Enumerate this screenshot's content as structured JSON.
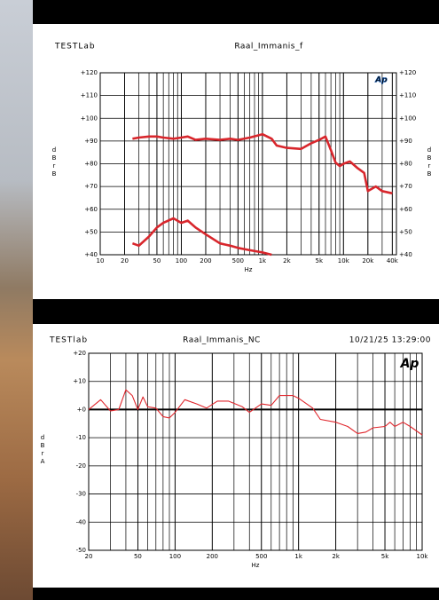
{
  "chart_data": [
    {
      "type": "line",
      "header": "TESTLab",
      "title": "Raal_Immanis_f",
      "logo": "Ap",
      "x_label": "Hz",
      "y_label": "dBr B",
      "log_x": true,
      "grid": true,
      "x": [
        25,
        30,
        40,
        50,
        60,
        80,
        100,
        120,
        150,
        200,
        300,
        400,
        500,
        700,
        1000,
        1300,
        1500,
        2000,
        3000,
        4000,
        5000,
        6000,
        7000,
        8000,
        9000,
        10000,
        12000,
        15000,
        18000,
        20000,
        25000,
        30000,
        40000
      ],
      "series": [
        {
          "color": "#d8262c",
          "values": [
            91,
            91.5,
            92,
            92,
            91.5,
            91,
            91.5,
            92,
            90.5,
            91,
            90.5,
            91,
            90.5,
            91.5,
            93,
            91,
            88,
            87,
            86.5,
            89,
            90.5,
            92,
            86,
            80.5,
            79,
            80,
            81,
            78,
            76,
            68,
            70,
            68,
            67
          ]
        },
        {
          "color": "#d8262c",
          "values": [
            45,
            44,
            48,
            52,
            54,
            56,
            54,
            55,
            52,
            49,
            45,
            44,
            43,
            42,
            41,
            40,
            null,
            null,
            null,
            null,
            null,
            null,
            null,
            null,
            null,
            null,
            null,
            null,
            null,
            null,
            null,
            null,
            null
          ]
        }
      ],
      "xlim": [
        10,
        45000
      ],
      "xticks": [
        10,
        20,
        50,
        100,
        200,
        500,
        {
          "value": 1000,
          "label": "1k"
        },
        {
          "value": 2000,
          "label": "2k"
        },
        {
          "value": 5000,
          "label": "5k"
        },
        {
          "value": 10000,
          "label": "10k"
        },
        {
          "value": 20000,
          "label": "20k"
        },
        {
          "value": 40000,
          "label": "40k"
        }
      ],
      "ylim": [
        40,
        120
      ],
      "yticks": [
        {
          "value": 40,
          "label": "+40"
        },
        {
          "value": 50,
          "label": "+50"
        },
        {
          "value": 60,
          "label": "+60"
        },
        {
          "value": 70,
          "label": "+70"
        },
        {
          "value": 80,
          "label": "+80"
        },
        {
          "value": 90,
          "label": "+90"
        },
        {
          "value": 100,
          "label": "+100"
        },
        {
          "value": 110,
          "label": "+110"
        },
        {
          "value": 120,
          "label": "+120"
        }
      ]
    },
    {
      "type": "line",
      "header": "TESTlab",
      "title": "Raal_Immanis_NC",
      "date": "10/21/25 13:29:00",
      "logo": "Ap",
      "x_label": "Hz",
      "y_label": "dBr A",
      "log_x": true,
      "grid": true,
      "x": [
        20,
        25,
        30,
        35,
        40,
        45,
        50,
        55,
        60,
        70,
        80,
        90,
        100,
        120,
        150,
        180,
        220,
        270,
        350,
        400,
        500,
        600,
        700,
        900,
        1000,
        1300,
        1500,
        2000,
        2500,
        3000,
        3500,
        4000,
        5000,
        5500,
        6000,
        7000,
        8000,
        10000
      ],
      "series": [
        {
          "color": "#e0262c",
          "values": [
            0,
            3.5,
            -0.5,
            0,
            7,
            5,
            0,
            4.5,
            1,
            0.5,
            -2.5,
            -3,
            -1,
            3.5,
            2,
            0.5,
            3,
            3,
            1,
            -1,
            2,
            1.5,
            5,
            5,
            4,
            0.5,
            -3.5,
            -4.5,
            -6,
            -8.5,
            -8,
            -6.5,
            -6,
            -4.5,
            -6,
            -4.5,
            -6,
            -9
          ]
        }
      ],
      "xlim": [
        20,
        10000
      ],
      "xticks": [
        20,
        50,
        100,
        200,
        500,
        {
          "value": 1000,
          "label": "1k"
        },
        {
          "value": 2000,
          "label": "2k"
        },
        {
          "value": 5000,
          "label": "5k"
        },
        {
          "value": 10000,
          "label": "10k"
        }
      ],
      "ylim": [
        -50,
        20
      ],
      "yticks": [
        -50,
        -40,
        -30,
        -20,
        -10,
        {
          "value": 0,
          "label": "+0"
        },
        {
          "value": 10,
          "label": "+10"
        },
        {
          "value": 20,
          "label": "+20"
        }
      ]
    }
  ]
}
